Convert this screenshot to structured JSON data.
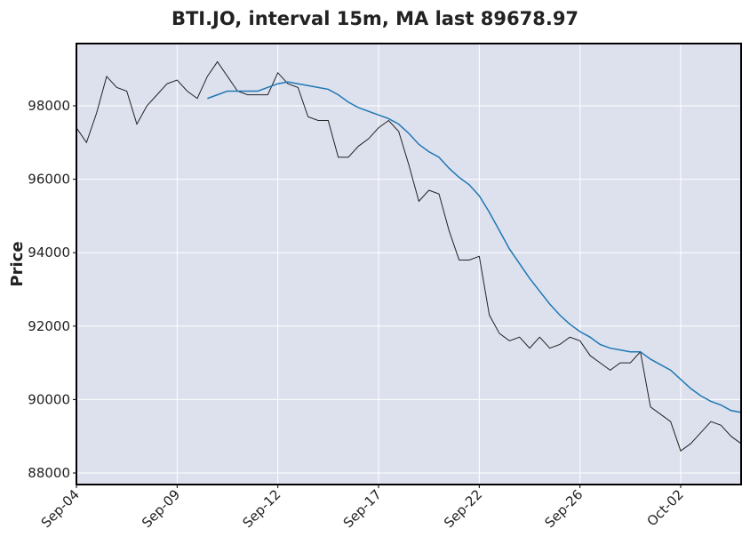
{
  "chart_data": {
    "type": "line",
    "title": "BTI.JO, interval 15m, MA last 89678.97",
    "y_label": "Price",
    "x": [
      0,
      3,
      6,
      9,
      12,
      15,
      18,
      21,
      24,
      27,
      30,
      33,
      36,
      39,
      42,
      45,
      48,
      51,
      54,
      57,
      60,
      63,
      66,
      69,
      72,
      75,
      78,
      81,
      84,
      87,
      90,
      93,
      96,
      99,
      102,
      105,
      108,
      111,
      114,
      117,
      120,
      123,
      126,
      129,
      132,
      135,
      138,
      141,
      144,
      147,
      150,
      153,
      156,
      159,
      162,
      165,
      168,
      171,
      174,
      177,
      180,
      183,
      186,
      189,
      192,
      195,
      198
    ],
    "series": [
      {
        "color": "#222222",
        "values": [
          97400,
          97000,
          97800,
          98800,
          98500,
          98400,
          97500,
          98000,
          98300,
          98600,
          98700,
          98400,
          98200,
          98800,
          99200,
          98800,
          98400,
          98300,
          98300,
          98300,
          98900,
          98600,
          98500,
          97700,
          97600,
          97600,
          96600,
          96600,
          96900,
          97100,
          97400,
          97600,
          97300,
          96400,
          95400,
          95700,
          95600,
          94600,
          93800,
          93800,
          93900,
          92300,
          91800,
          91600,
          91700,
          91400,
          91700,
          91400,
          91500,
          91700,
          91600,
          91200,
          91000,
          90800,
          91000,
          91000,
          91300,
          89800,
          89600,
          89400,
          88600,
          88800,
          89100,
          89400,
          89300,
          89000,
          88800
        ]
      },
      {
        "color": "#1f77b4",
        "values": [
          null,
          null,
          null,
          null,
          null,
          null,
          null,
          null,
          null,
          null,
          null,
          null,
          null,
          98200,
          98300,
          98400,
          98400,
          98400,
          98400,
          98500,
          98600,
          98650,
          98600,
          98550,
          98500,
          98450,
          98300,
          98100,
          97950,
          97850,
          97750,
          97650,
          97500,
          97250,
          96950,
          96750,
          96600,
          96300,
          96050,
          95850,
          95550,
          95100,
          94600,
          94100,
          93700,
          93300,
          92950,
          92600,
          92300,
          92050,
          91850,
          91700,
          91500,
          91400,
          91350,
          91300,
          91300,
          91100,
          90950,
          90800,
          90550,
          90300,
          90100,
          89950,
          89850,
          89700,
          89650
        ]
      }
    ],
    "xlim": [
      0,
      198
    ],
    "xticks": [
      {
        "value": 0,
        "label": "Sep-04"
      },
      {
        "value": 30,
        "label": "Sep-09"
      },
      {
        "value": 60,
        "label": "Sep-12"
      },
      {
        "value": 90,
        "label": "Sep-17"
      },
      {
        "value": 120,
        "label": "Sep-22"
      },
      {
        "value": 150,
        "label": "Sep-26"
      },
      {
        "value": 180,
        "label": "Oct-02"
      }
    ],
    "ylim": [
      87685,
      99695
    ],
    "yticks": [
      88000,
      90000,
      92000,
      94000,
      96000,
      98000
    ],
    "grid": true
  }
}
